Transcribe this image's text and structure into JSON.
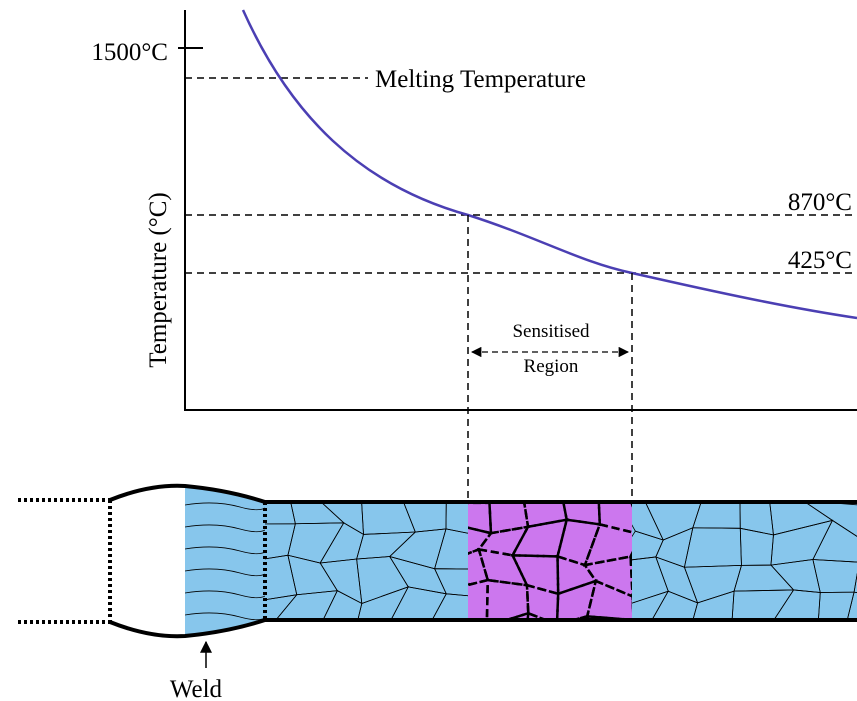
{
  "y_axis": {
    "label": "Temperature (°C)",
    "tick_label": "1500°C"
  },
  "lines": {
    "melting": "Melting Temperature",
    "upper": "870°C",
    "lower": "425°C"
  },
  "region": {
    "line1": "Sensitised",
    "line2": "Region"
  },
  "weld": "Weld"
}
